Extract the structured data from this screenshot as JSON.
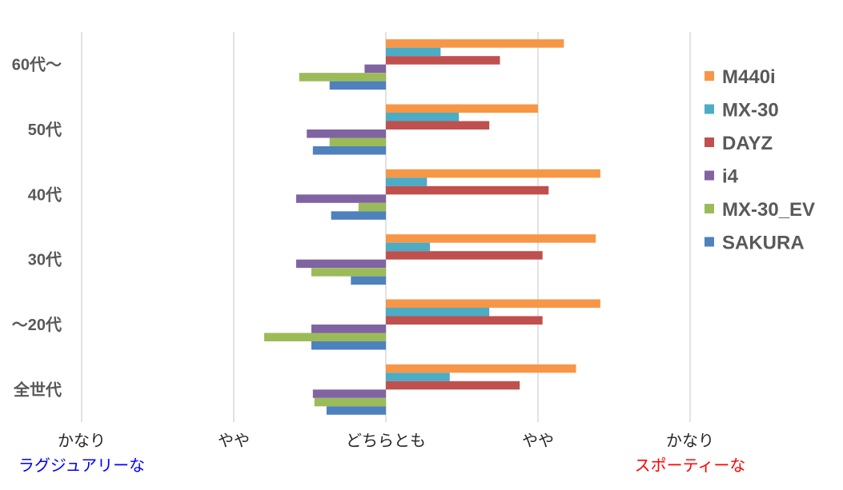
{
  "chart_data": {
    "type": "bar",
    "orientation": "horizontal",
    "categories": [
      "60代〜",
      "50代",
      "40代",
      "30代",
      "〜20代",
      "全世代"
    ],
    "xlim": [
      -2,
      2
    ],
    "x_ticks": [
      {
        "value": -2,
        "label": "かなり",
        "sub_label": "ラグジュアリーな",
        "sub_color": "#0000ff"
      },
      {
        "value": -1,
        "label": "やや"
      },
      {
        "value": 0,
        "label": "どちらとも"
      },
      {
        "value": 1,
        "label": "やや"
      },
      {
        "value": 2,
        "label": "かなり",
        "sub_label": "スポーティーな",
        "sub_color": "#ff0000"
      }
    ],
    "grid": true,
    "legend_position": "right",
    "series": [
      {
        "name": "M440i",
        "color": "#f79646",
        "values": [
          1.17,
          1.0,
          1.41,
          1.38,
          1.41,
          1.25
        ]
      },
      {
        "name": "MX-30",
        "color": "#4bacc6",
        "values": [
          0.36,
          0.48,
          0.27,
          0.29,
          0.68,
          0.42
        ]
      },
      {
        "name": "DAYZ",
        "color": "#c0504d",
        "values": [
          0.75,
          0.68,
          1.07,
          1.03,
          1.03,
          0.88
        ]
      },
      {
        "name": "i4",
        "color": "#8064a2",
        "values": [
          -0.14,
          -0.52,
          -0.59,
          -0.59,
          -0.49,
          -0.48
        ]
      },
      {
        "name": "MX-30_EV",
        "color": "#9bbb59",
        "values": [
          -0.57,
          -0.37,
          -0.18,
          -0.49,
          -0.8,
          -0.47
        ]
      },
      {
        "name": "SAKURA",
        "color": "#4f81bd",
        "values": [
          -0.37,
          -0.48,
          -0.36,
          -0.23,
          -0.49,
          -0.39
        ]
      }
    ]
  }
}
